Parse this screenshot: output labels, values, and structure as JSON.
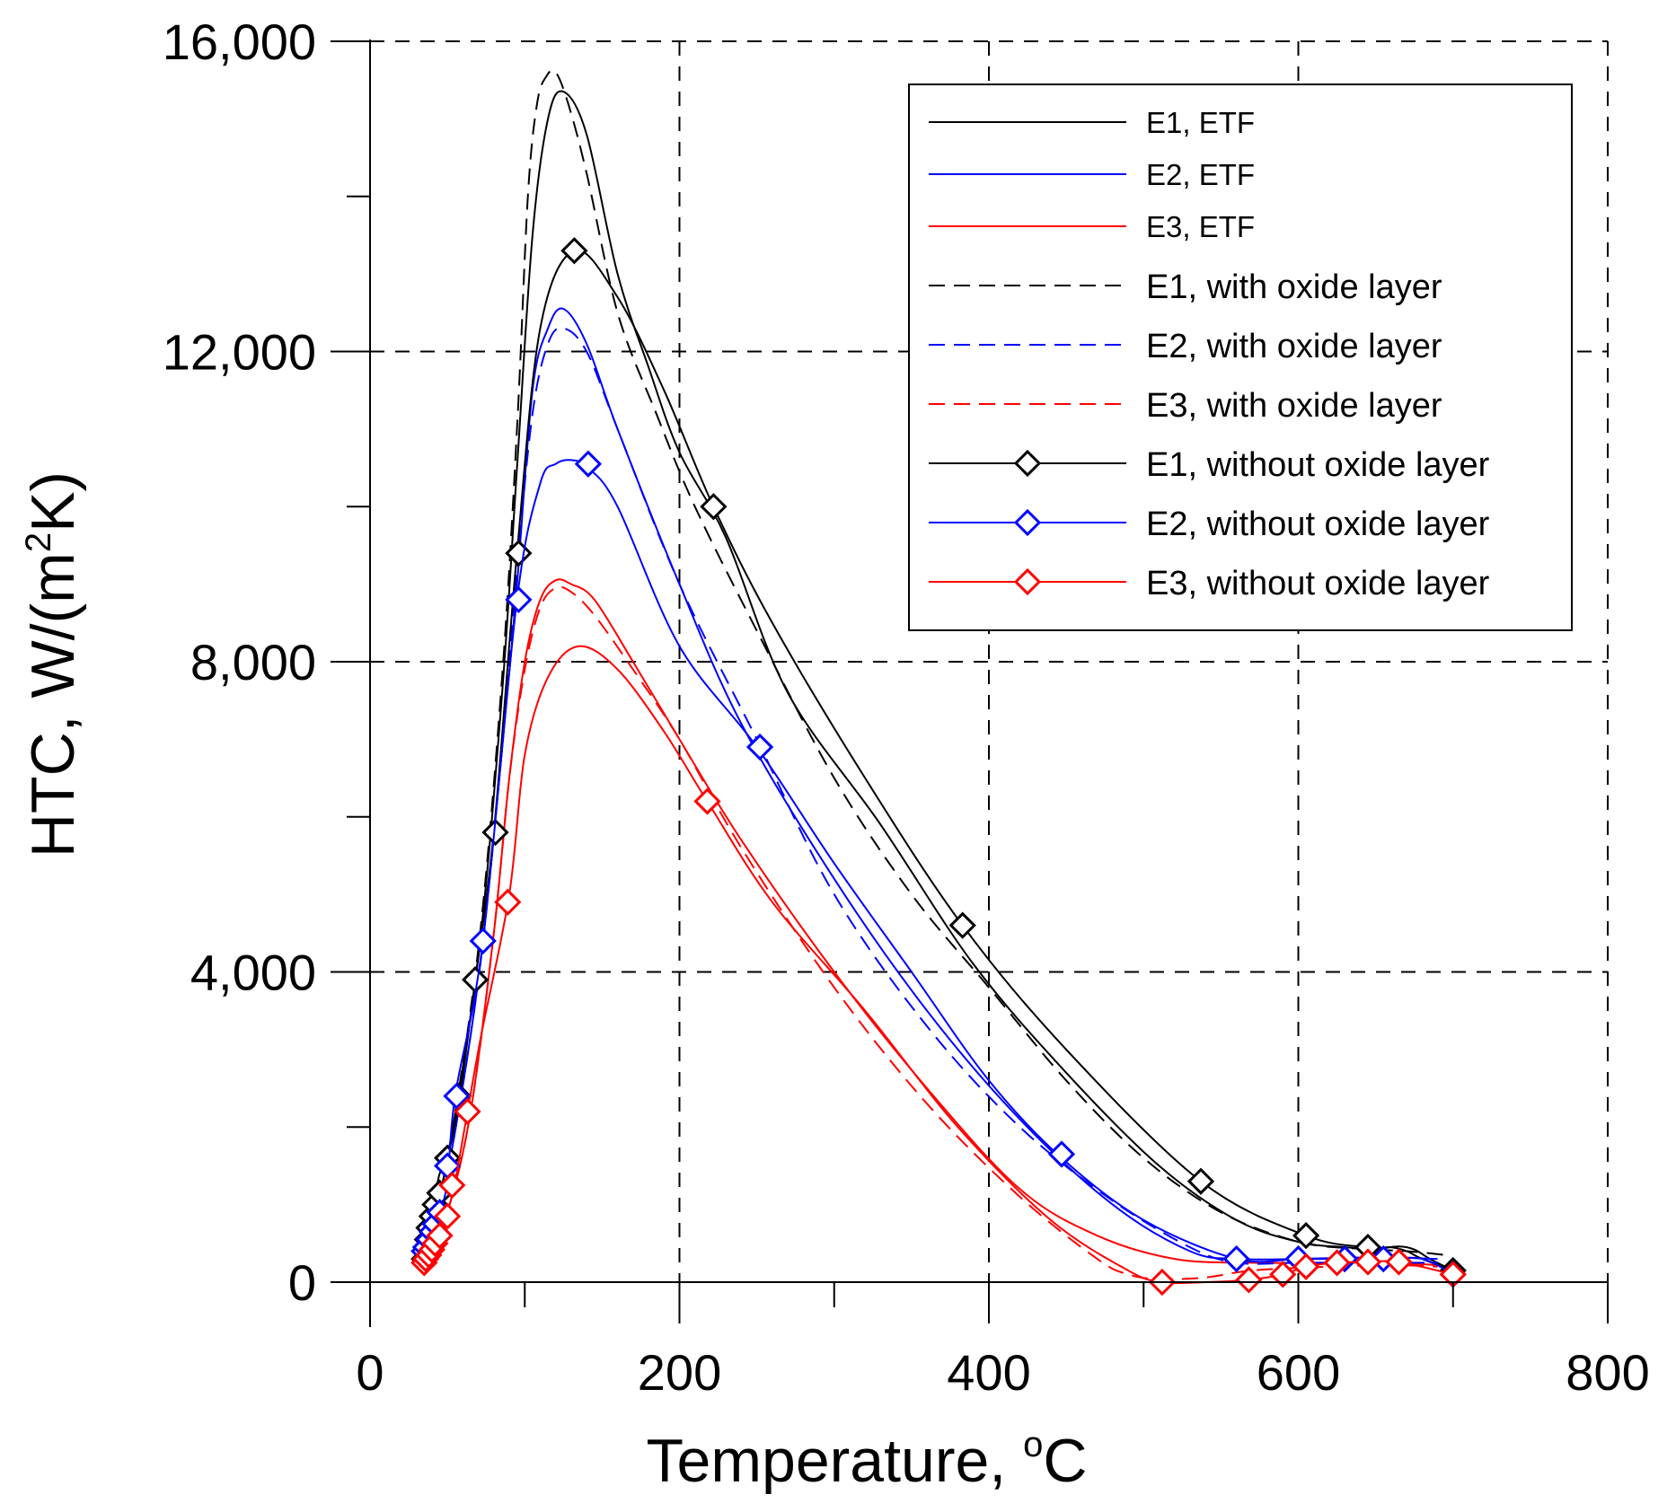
{
  "chart_data": {
    "type": "line",
    "xlabel": "Temperature, ",
    "xlabel_sup": "o",
    "xlabel_unit": "C",
    "ylabel_prefix": "HTC, W/(m",
    "ylabel_sup": "2",
    "ylabel_suffix": "K)",
    "xlim": [
      0,
      800
    ],
    "ylim": [
      0,
      16000
    ],
    "x_ticks": [
      0,
      200,
      400,
      600,
      800
    ],
    "x_tick_labels": [
      "0",
      "200",
      "400",
      "600",
      "800"
    ],
    "y_ticks": [
      0,
      4000,
      8000,
      12000,
      16000
    ],
    "y_tick_labels": [
      "0",
      "4,000",
      "8,000",
      "12,000",
      "16,000"
    ],
    "grid": "dashed",
    "legend_position": "top-right",
    "colors": {
      "E1": "#000000",
      "E2": "#0000ff",
      "E3": "#ff0000"
    },
    "series": [
      {
        "name": "E1, ETF",
        "color": "#000000",
        "style": "solid",
        "marker": "none",
        "x": [
          35,
          50,
          70,
          85,
          95,
          105,
          115,
          125,
          140,
          160,
          180,
          200,
          230,
          270,
          330,
          390,
          450,
          510,
          560,
          600,
          630,
          650,
          665,
          675,
          685,
          695
        ],
        "y": [
          300,
          1600,
          4200,
          7500,
          10500,
          13500,
          15000,
          15350,
          14800,
          13000,
          11800,
          10700,
          9600,
          7600,
          5900,
          4100,
          2700,
          1500,
          800,
          520,
          450,
          430,
          460,
          420,
          300,
          200
        ]
      },
      {
        "name": "E2, ETF",
        "color": "#0000ff",
        "style": "solid",
        "marker": "none",
        "x": [
          35,
          50,
          70,
          85,
          95,
          105,
          115,
          125,
          140,
          160,
          200,
          240,
          300,
          360,
          420,
          480,
          530,
          560,
          600,
          650,
          690
        ],
        "y": [
          250,
          1400,
          3900,
          6800,
          9000,
          11500,
          12300,
          12550,
          12100,
          11000,
          9000,
          7200,
          5200,
          3500,
          2100,
          1000,
          400,
          300,
          300,
          320,
          300
        ]
      },
      {
        "name": "E3, ETF",
        "color": "#ff0000",
        "style": "solid",
        "marker": "none",
        "x": [
          35,
          50,
          65,
          80,
          90,
          100,
          110,
          120,
          130,
          145,
          170,
          200,
          240,
          300,
          360,
          420,
          470,
          520,
          570,
          620,
          660,
          690
        ],
        "y": [
          200,
          900,
          2200,
          4500,
          6500,
          8000,
          8800,
          9050,
          9000,
          8800,
          8000,
          7000,
          5700,
          4000,
          2500,
          1200,
          600,
          300,
          250,
          250,
          250,
          220
        ]
      },
      {
        "name": "E1, with oxide layer",
        "color": "#000000",
        "style": "dashed",
        "marker": "none",
        "x": [
          35,
          50,
          70,
          85,
          95,
          102,
          108,
          114,
          120,
          128,
          140,
          160,
          185,
          210,
          250,
          300,
          350,
          400,
          450,
          500,
          550,
          600,
          640,
          670,
          695
        ],
        "y": [
          300,
          1600,
          4300,
          7700,
          11000,
          14000,
          15200,
          15550,
          15600,
          15200,
          14300,
          12500,
          11200,
          10000,
          8400,
          6500,
          5000,
          3800,
          2600,
          1600,
          900,
          520,
          430,
          400,
          350
        ]
      },
      {
        "name": "E2, with oxide layer",
        "color": "#0000ff",
        "style": "dashed",
        "marker": "none",
        "x": [
          35,
          50,
          70,
          85,
          95,
          105,
          115,
          125,
          140,
          160,
          200,
          250,
          300,
          360,
          420,
          480,
          530,
          560,
          600,
          650,
          690
        ],
        "y": [
          250,
          1400,
          3900,
          6800,
          9200,
          11200,
          12100,
          12300,
          12000,
          11000,
          9000,
          7000,
          5000,
          3300,
          2000,
          1050,
          450,
          250,
          250,
          250,
          250
        ]
      },
      {
        "name": "E3, with oxide layer",
        "color": "#ff0000",
        "style": "dashed",
        "marker": "none",
        "x": [
          35,
          50,
          65,
          80,
          90,
          100,
          110,
          120,
          130,
          145,
          170,
          200,
          240,
          300,
          360,
          420,
          470,
          490,
          510,
          540,
          570,
          620,
          660,
          690
        ],
        "y": [
          200,
          900,
          2200,
          4500,
          6500,
          7900,
          8700,
          8950,
          8900,
          8600,
          7900,
          7000,
          5600,
          3800,
          2300,
          1100,
          300,
          100,
          40,
          60,
          150,
          200,
          220,
          200
        ]
      },
      {
        "name": "E1, without oxide layer",
        "color": "#000000",
        "style": "solid",
        "marker": "diamond",
        "x": [
          35,
          37,
          39,
          42,
          45,
          50,
          58,
          68,
          80,
          95,
          110,
          132,
          160,
          190,
          222,
          260,
          320,
          383,
          450,
          537,
          605,
          645,
          660,
          670,
          680,
          700
        ],
        "y": [
          300,
          550,
          800,
          1100,
          1400,
          1600,
          2400,
          3900,
          5800,
          9400,
          12300,
          13300,
          12700,
          11500,
          10000,
          8500,
          6500,
          4600,
          3000,
          1300,
          600,
          450,
          450,
          400,
          300,
          150
        ],
        "marker_x": [
          35,
          36,
          37,
          38,
          40,
          42,
          45,
          50,
          57,
          68,
          81,
          96,
          132,
          222,
          383,
          537,
          605,
          645,
          700
        ],
        "marker_y": [
          300,
          450,
          550,
          700,
          850,
          1000,
          1150,
          1600,
          2400,
          3900,
          5800,
          9400,
          13300,
          10000,
          4600,
          1300,
          600,
          450,
          150
        ]
      },
      {
        "name": "E2, without oxide layer",
        "color": "#0000ff",
        "style": "solid",
        "marker": "diamond",
        "x": [
          35,
          38,
          41,
          45,
          50,
          55,
          73,
          95,
          110,
          120,
          130,
          141,
          160,
          200,
          250,
          300,
          350,
          400,
          447,
          500,
          560,
          600,
          630,
          655,
          680,
          700
        ],
        "y": [
          400,
          550,
          700,
          900,
          1300,
          2400,
          4400,
          8800,
          10300,
          10550,
          10600,
          10500,
          10000,
          8200,
          6900,
          5400,
          4000,
          2600,
          1600,
          800,
          300,
          300,
          300,
          300,
          300,
          100
        ],
        "marker_x": [
          35,
          36,
          38,
          40,
          42,
          45,
          50,
          56,
          73,
          96,
          141,
          252,
          447,
          560,
          600,
          630,
          655,
          700
        ],
        "marker_y": [
          400,
          450,
          550,
          650,
          750,
          900,
          1500,
          2400,
          4400,
          8800,
          10550,
          6900,
          1650,
          300,
          300,
          300,
          300,
          100
        ]
      },
      {
        "name": "E3, without oxide layer",
        "color": "#ff0000",
        "style": "solid",
        "marker": "diamond",
        "x": [
          35,
          38,
          41,
          45,
          50,
          55,
          63,
          72,
          90,
          100,
          115,
          135,
          160,
          190,
          218,
          260,
          320,
          380,
          440,
          490,
          512,
          540,
          568,
          590,
          605,
          625,
          645,
          665,
          700
        ],
        "y": [
          250,
          350,
          450,
          600,
          900,
          1300,
          2200,
          3200,
          5000,
          6800,
          7800,
          8200,
          7900,
          7100,
          6200,
          4900,
          3500,
          2000,
          800,
          150,
          0,
          0,
          30,
          100,
          200,
          250,
          260,
          260,
          100
        ],
        "marker_x": [
          35,
          36,
          38,
          40,
          42,
          45,
          50,
          53,
          63,
          89,
          218,
          512,
          568,
          590,
          605,
          625,
          645,
          665,
          700
        ],
        "marker_y": [
          250,
          300,
          350,
          420,
          500,
          600,
          850,
          1250,
          2200,
          4900,
          6200,
          0,
          30,
          100,
          200,
          250,
          260,
          260,
          100
        ]
      }
    ]
  }
}
